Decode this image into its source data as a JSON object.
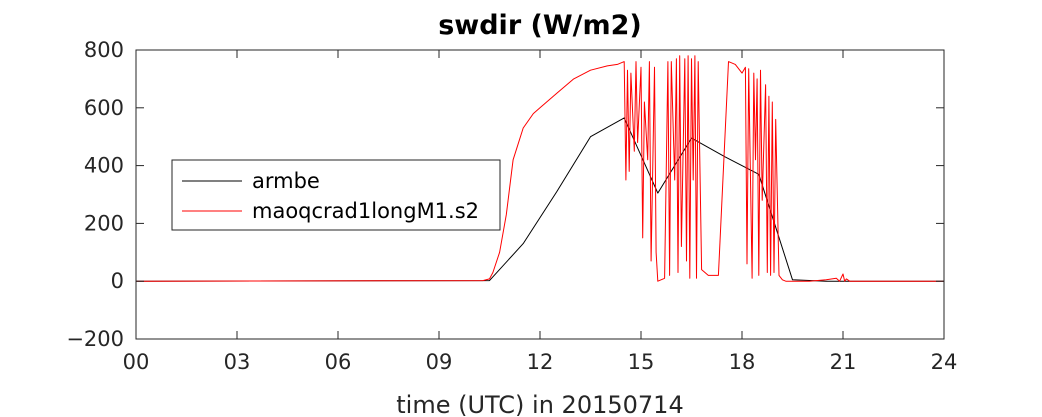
{
  "chart_data": {
    "type": "line",
    "title": "swdir  (W/m2)",
    "xlabel": "time (UTC) in 20150714",
    "ylabel": "",
    "xlim": [
      0,
      24
    ],
    "ylim": [
      -200,
      800
    ],
    "xticks": [
      0,
      3,
      6,
      9,
      12,
      15,
      18,
      21,
      24
    ],
    "xtick_labels": [
      "00",
      "03",
      "06",
      "09",
      "12",
      "15",
      "18",
      "21",
      "24"
    ],
    "yticks": [
      -200,
      0,
      200,
      400,
      600,
      800
    ],
    "ytick_labels": [
      "−200",
      "0",
      "200",
      "400",
      "600",
      "800"
    ],
    "grid": false,
    "legend_position": "center-left",
    "series": [
      {
        "name": "armbe",
        "color": "#000000",
        "x": [
          0,
          10.5,
          11.5,
          12.5,
          13.5,
          14.5,
          15.5,
          16.5,
          17.5,
          18.5,
          19.5,
          20.5,
          24
        ],
        "values": [
          0,
          2,
          130,
          310,
          500,
          565,
          305,
          495,
          430,
          370,
          5,
          0,
          0
        ]
      },
      {
        "name": "maoqcrad1longM1.s2",
        "color": "#ff0000",
        "x": [
          0,
          10.3,
          10.5,
          10.6,
          10.8,
          11.0,
          11.2,
          11.5,
          11.8,
          12.0,
          12.5,
          13.0,
          13.5,
          14.0,
          14.3,
          14.5,
          14.55,
          14.6,
          14.65,
          14.7,
          14.8,
          14.85,
          14.9,
          15.0,
          15.05,
          15.1,
          15.2,
          15.25,
          15.3,
          15.4,
          15.45,
          15.5,
          15.7,
          15.8,
          15.85,
          15.9,
          16.0,
          16.05,
          16.1,
          16.15,
          16.2,
          16.3,
          16.35,
          16.4,
          16.45,
          16.5,
          16.55,
          16.6,
          16.65,
          16.7,
          16.8,
          17.0,
          17.3,
          17.6,
          17.8,
          18.0,
          18.1,
          18.15,
          18.2,
          18.3,
          18.35,
          18.4,
          18.45,
          18.5,
          18.55,
          18.6,
          18.7,
          18.75,
          18.8,
          18.85,
          18.9,
          18.95,
          19.0,
          19.1,
          19.2,
          19.3,
          19.5,
          20.0,
          20.5,
          20.8,
          20.9,
          21.0,
          21.05,
          21.1,
          21.2,
          22.0,
          24
        ],
        "values": [
          0,
          2,
          8,
          30,
          100,
          230,
          420,
          530,
          580,
          600,
          650,
          700,
          730,
          745,
          750,
          760,
          350,
          730,
          380,
          720,
          450,
          760,
          480,
          740,
          150,
          620,
          420,
          760,
          70,
          740,
          100,
          0,
          10,
          760,
          20,
          760,
          350,
          770,
          30,
          780,
          120,
          770,
          70,
          780,
          10,
          770,
          350,
          780,
          10,
          760,
          40,
          20,
          20,
          760,
          750,
          720,
          740,
          60,
          735,
          10,
          720,
          420,
          700,
          20,
          730,
          280,
          680,
          30,
          640,
          20,
          620,
          30,
          560,
          20,
          5,
          0,
          0,
          0,
          5,
          10,
          0,
          25,
          0,
          8,
          0,
          0,
          0
        ]
      }
    ]
  }
}
